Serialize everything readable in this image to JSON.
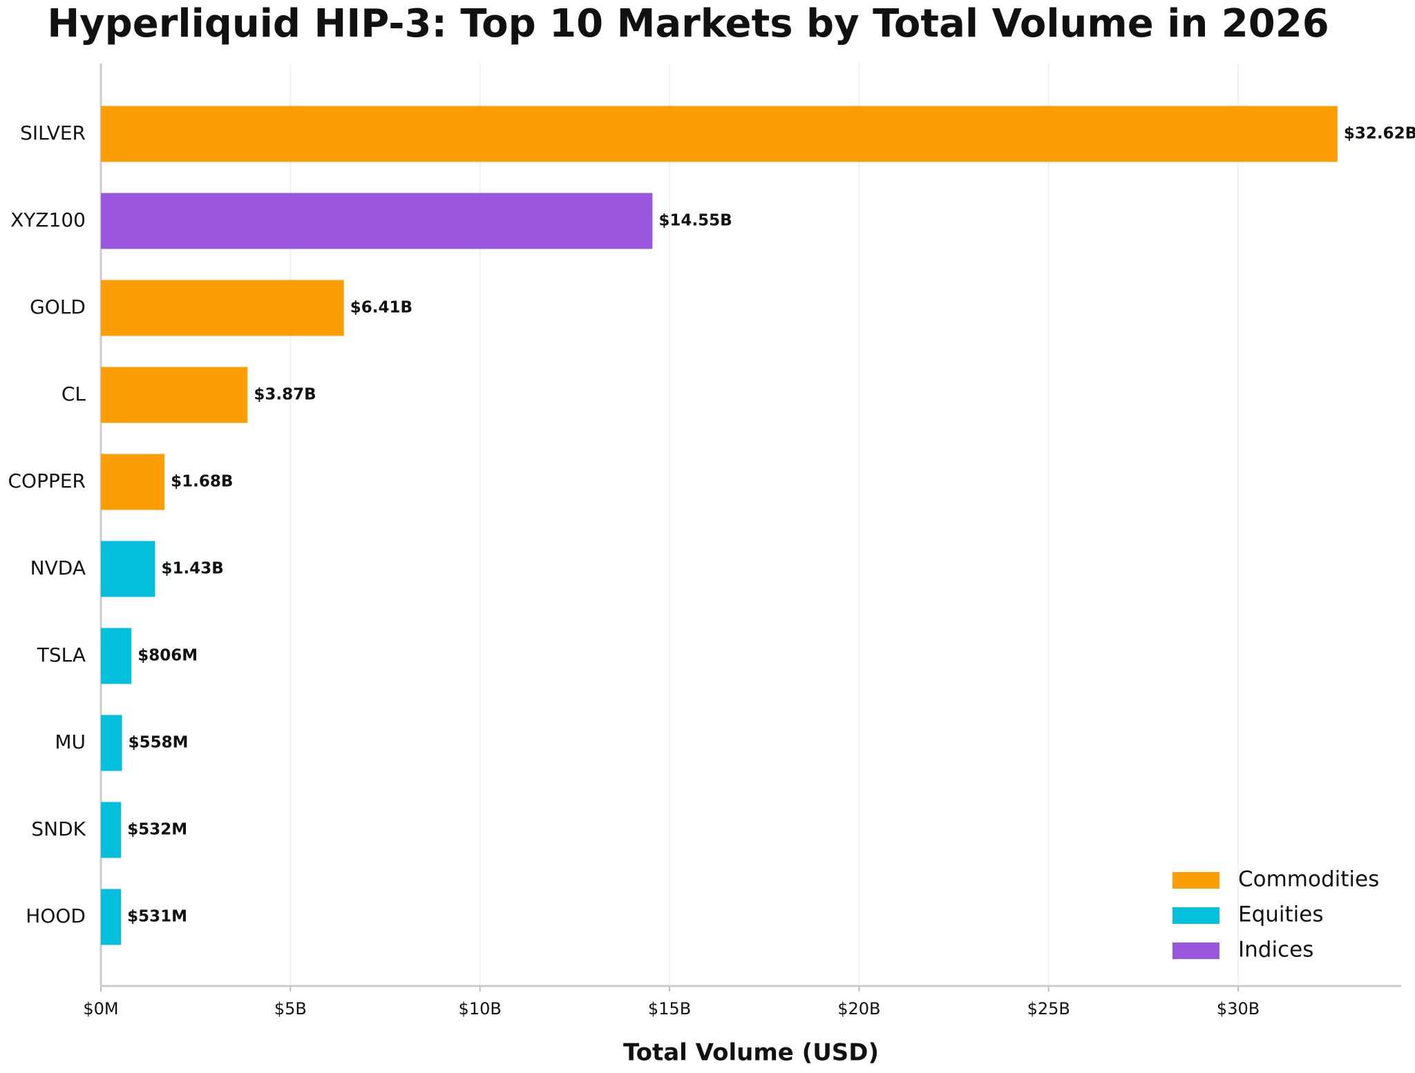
{
  "chart_data": {
    "type": "bar",
    "orientation": "horizontal",
    "title": "Hyperliquid HIP-3: Top 10 Markets by Total Volume in 2026",
    "x_label": "Total Volume (USD)",
    "categories": [
      "SILVER",
      "XYZ100",
      "GOLD",
      "CL",
      "COPPER",
      "NVDA",
      "TSLA",
      "MU",
      "SNDK",
      "HOOD"
    ],
    "series": [
      {
        "name": "Commodities",
        "color": "#fb9e05",
        "values": [
          32620000000,
          null,
          6410000000,
          3870000000,
          1680000000,
          null,
          null,
          null,
          null,
          null
        ],
        "value_labels": [
          "$32.62B",
          null,
          "$6.41B",
          "$3.87B",
          "$1.68B",
          null,
          null,
          null,
          null,
          null
        ]
      },
      {
        "name": "Equities",
        "color": "#04c0dc",
        "values": [
          null,
          null,
          null,
          null,
          null,
          1430000000,
          806000000,
          558000000,
          532000000,
          531000000
        ],
        "value_labels": [
          null,
          null,
          null,
          null,
          null,
          "$1.43B",
          "$806M",
          "$558M",
          "$532M",
          "$531M"
        ]
      },
      {
        "name": "Indices",
        "color": "#9a56dd",
        "values": [
          null,
          14550000000,
          null,
          null,
          null,
          null,
          null,
          null,
          null,
          null
        ],
        "value_labels": [
          null,
          "$14.55B",
          null,
          null,
          null,
          null,
          null,
          null,
          null,
          null
        ]
      }
    ],
    "xlim": [
      0,
      34300000000
    ],
    "xticks": [
      {
        "value": 0,
        "label": "$0M"
      },
      {
        "value": 5000000000,
        "label": "$5B"
      },
      {
        "value": 10000000000,
        "label": "$10B"
      },
      {
        "value": 15000000000,
        "label": "$15B"
      },
      {
        "value": 20000000000,
        "label": "$20B"
      },
      {
        "value": 25000000000,
        "label": "$25B"
      },
      {
        "value": 30000000000,
        "label": "$30B"
      }
    ],
    "grid": true,
    "legend_position": "lower right"
  }
}
